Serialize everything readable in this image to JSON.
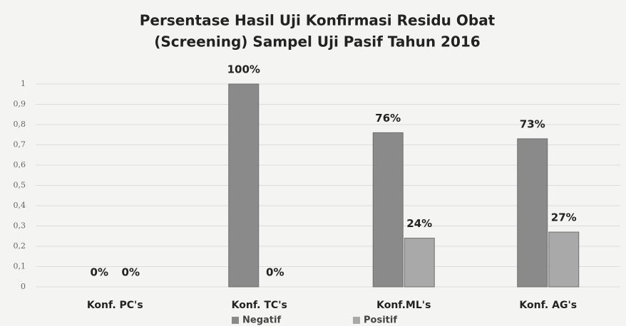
{
  "chart_data": {
    "type": "bar",
    "title": "Persentase Hasil Uji Konfirmasi Residu Obat",
    "subtitle": "(Screening) Sampel Uji Pasif Tahun 2016",
    "categories": [
      "Konf. PC's",
      "Konf. TC's",
      "Konf.ML's",
      "Konf. AG's"
    ],
    "series": [
      {
        "name": "Negatif",
        "color": "#8a8a8a",
        "values": [
          0,
          1,
          0.76,
          0.73
        ],
        "value_labels": [
          "0%",
          "100%",
          "76%",
          "73%"
        ]
      },
      {
        "name": "Positif",
        "color": "#a9a9a9",
        "values": [
          0,
          0,
          0.24,
          0.27
        ],
        "value_labels": [
          "0%",
          "0%",
          "24%",
          "27%"
        ]
      }
    ],
    "ylim": [
      0,
      1
    ],
    "yticks": [
      0,
      {
        "value": 0.1,
        "label": "0,1"
      },
      {
        "value": 0.2,
        "label": "0,2"
      },
      {
        "value": 0.3,
        "label": "0,3"
      },
      {
        "value": 0.4,
        "label": "0,4"
      },
      {
        "value": 0.5,
        "label": "0,5"
      },
      {
        "value": 0.6,
        "label": "0,6"
      },
      {
        "value": 0.7,
        "label": "0,7"
      },
      {
        "value": 0.8,
        "label": "0,8"
      },
      {
        "value": 0.9,
        "label": "0,9"
      },
      1
    ],
    "grid": true,
    "legend": "bottom"
  }
}
